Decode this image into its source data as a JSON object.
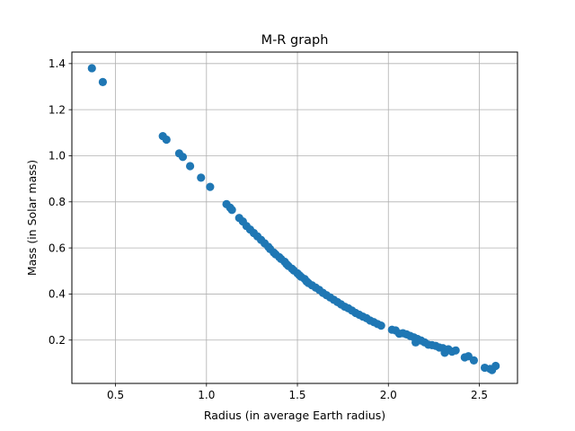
{
  "chart_data": {
    "type": "scatter",
    "title": "M-R graph",
    "xlabel": "Radius (in average Earth radius)",
    "ylabel": "Mass (in Solar mass)",
    "xlim": [
      0.26,
      2.71
    ],
    "ylim": [
      0.012,
      1.45
    ],
    "xticks": [
      0.5,
      1.0,
      1.5,
      2.0,
      2.5
    ],
    "xtick_labels": [
      "0.5",
      "1.0",
      "1.5",
      "2.0",
      "2.5"
    ],
    "yticks": [
      0.2,
      0.4,
      0.6,
      0.8,
      1.0,
      1.2,
      1.4
    ],
    "ytick_labels": [
      "0.2",
      "0.4",
      "0.6",
      "0.8",
      "1.0",
      "1.2",
      "1.4"
    ],
    "grid": true,
    "marker_color": "#1f77b4",
    "points": [
      [
        0.37,
        1.38
      ],
      [
        0.43,
        1.32
      ],
      [
        0.76,
        1.085
      ],
      [
        0.78,
        1.07
      ],
      [
        0.85,
        1.01
      ],
      [
        0.87,
        0.995
      ],
      [
        0.91,
        0.955
      ],
      [
        0.97,
        0.905
      ],
      [
        1.02,
        0.865
      ],
      [
        1.11,
        0.79
      ],
      [
        1.13,
        0.775
      ],
      [
        1.14,
        0.765
      ],
      [
        1.18,
        0.73
      ],
      [
        1.2,
        0.715
      ],
      [
        1.22,
        0.695
      ],
      [
        1.24,
        0.68
      ],
      [
        1.26,
        0.665
      ],
      [
        1.28,
        0.65
      ],
      [
        1.3,
        0.635
      ],
      [
        1.32,
        0.62
      ],
      [
        1.34,
        0.605
      ],
      [
        1.35,
        0.595
      ],
      [
        1.37,
        0.58
      ],
      [
        1.38,
        0.572
      ],
      [
        1.4,
        0.56
      ],
      [
        1.41,
        0.552
      ],
      [
        1.43,
        0.54
      ],
      [
        1.44,
        0.53
      ],
      [
        1.45,
        0.522
      ],
      [
        1.47,
        0.51
      ],
      [
        1.48,
        0.502
      ],
      [
        1.5,
        0.49
      ],
      [
        1.51,
        0.482
      ],
      [
        1.52,
        0.475
      ],
      [
        1.54,
        0.465
      ],
      [
        1.55,
        0.455
      ],
      [
        1.56,
        0.448
      ],
      [
        1.58,
        0.438
      ],
      [
        1.6,
        0.428
      ],
      [
        1.62,
        0.418
      ],
      [
        1.64,
        0.405
      ],
      [
        1.66,
        0.395
      ],
      [
        1.68,
        0.385
      ],
      [
        1.7,
        0.375
      ],
      [
        1.72,
        0.365
      ],
      [
        1.74,
        0.355
      ],
      [
        1.76,
        0.345
      ],
      [
        1.78,
        0.338
      ],
      [
        1.8,
        0.328
      ],
      [
        1.82,
        0.318
      ],
      [
        1.84,
        0.31
      ],
      [
        1.86,
        0.302
      ],
      [
        1.88,
        0.295
      ],
      [
        1.9,
        0.285
      ],
      [
        1.92,
        0.278
      ],
      [
        1.94,
        0.27
      ],
      [
        1.96,
        0.263
      ],
      [
        2.02,
        0.245
      ],
      [
        2.04,
        0.242
      ],
      [
        2.06,
        0.228
      ],
      [
        2.08,
        0.23
      ],
      [
        2.1,
        0.225
      ],
      [
        2.12,
        0.218
      ],
      [
        2.14,
        0.212
      ],
      [
        2.15,
        0.19
      ],
      [
        2.16,
        0.205
      ],
      [
        2.18,
        0.198
      ],
      [
        2.2,
        0.19
      ],
      [
        2.22,
        0.18
      ],
      [
        2.24,
        0.178
      ],
      [
        2.26,
        0.175
      ],
      [
        2.28,
        0.168
      ],
      [
        2.3,
        0.165
      ],
      [
        2.31,
        0.145
      ],
      [
        2.33,
        0.16
      ],
      [
        2.35,
        0.15
      ],
      [
        2.37,
        0.155
      ],
      [
        2.42,
        0.125
      ],
      [
        2.44,
        0.13
      ],
      [
        2.47,
        0.112
      ],
      [
        2.53,
        0.08
      ],
      [
        2.56,
        0.075
      ],
      [
        2.57,
        0.07
      ],
      [
        2.59,
        0.088
      ]
    ]
  }
}
